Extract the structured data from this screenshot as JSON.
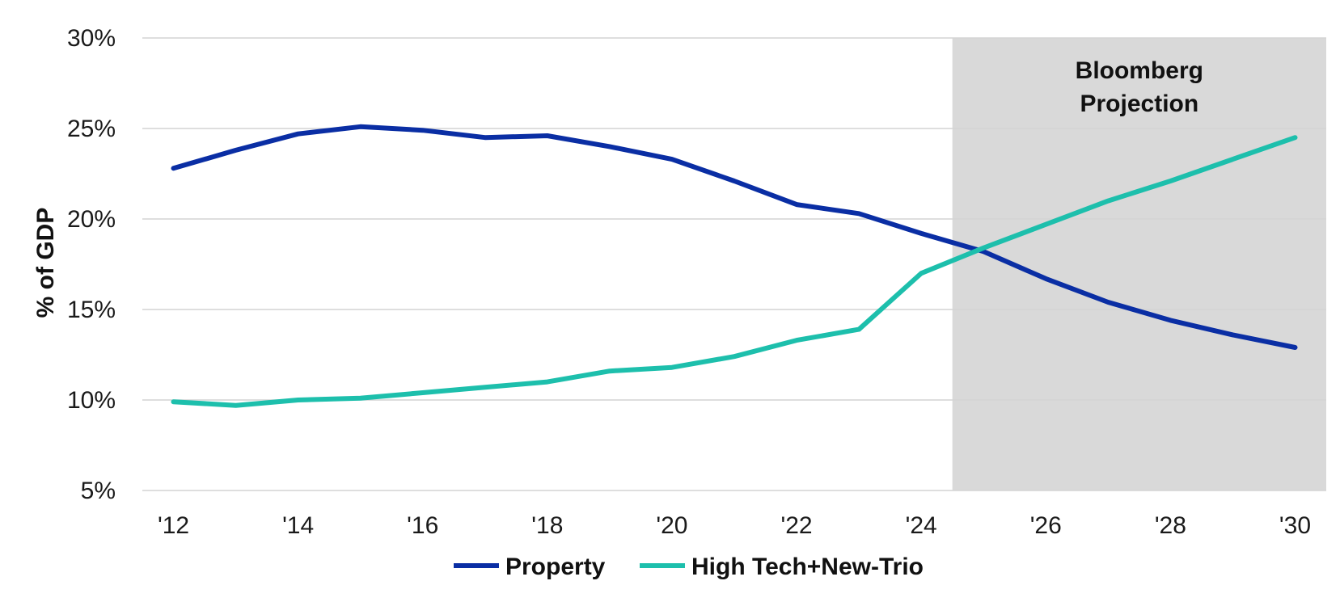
{
  "chart_data": {
    "type": "line",
    "x": [
      2012,
      2013,
      2014,
      2015,
      2016,
      2017,
      2018,
      2019,
      2020,
      2021,
      2022,
      2023,
      2024,
      2025,
      2026,
      2027,
      2028,
      2029,
      2030
    ],
    "x_tick_values": [
      2012,
      2014,
      2016,
      2018,
      2020,
      2022,
      2024,
      2026,
      2028,
      2030
    ],
    "x_tick_labels": [
      "'12",
      "'14",
      "'16",
      "'18",
      "'20",
      "'22",
      "'24",
      "'26",
      "'28",
      "'30"
    ],
    "y_tick_values": [
      5,
      10,
      15,
      20,
      25,
      30
    ],
    "y_tick_labels": [
      "5%",
      "10%",
      "15%",
      "20%",
      "25%",
      "30%"
    ],
    "ylim": [
      5,
      30
    ],
    "xlim": [
      2011.5,
      2030.5
    ],
    "ylabel": "% of GDP",
    "xlabel": "",
    "title": "",
    "grid": "horizontal",
    "legend": "bottom-center",
    "projection": {
      "label_lines": [
        "Bloomberg",
        "Projection"
      ],
      "x_start": 2024.5,
      "color": "#d9d9d9"
    },
    "series": [
      {
        "name": "Property",
        "color": "#0a2ea4",
        "values": [
          22.8,
          23.8,
          24.7,
          25.1,
          24.9,
          24.5,
          24.6,
          24.0,
          23.3,
          22.1,
          20.8,
          20.3,
          19.2,
          18.2,
          16.7,
          15.4,
          14.4,
          13.6,
          12.9
        ]
      },
      {
        "name": "High Tech+New-Trio",
        "color": "#1dbfac",
        "values": [
          9.9,
          9.7,
          10.0,
          10.1,
          10.4,
          10.7,
          11.0,
          11.6,
          11.8,
          12.4,
          13.3,
          13.9,
          17.0,
          18.4,
          19.7,
          21.0,
          22.1,
          23.3,
          24.5
        ]
      }
    ]
  }
}
